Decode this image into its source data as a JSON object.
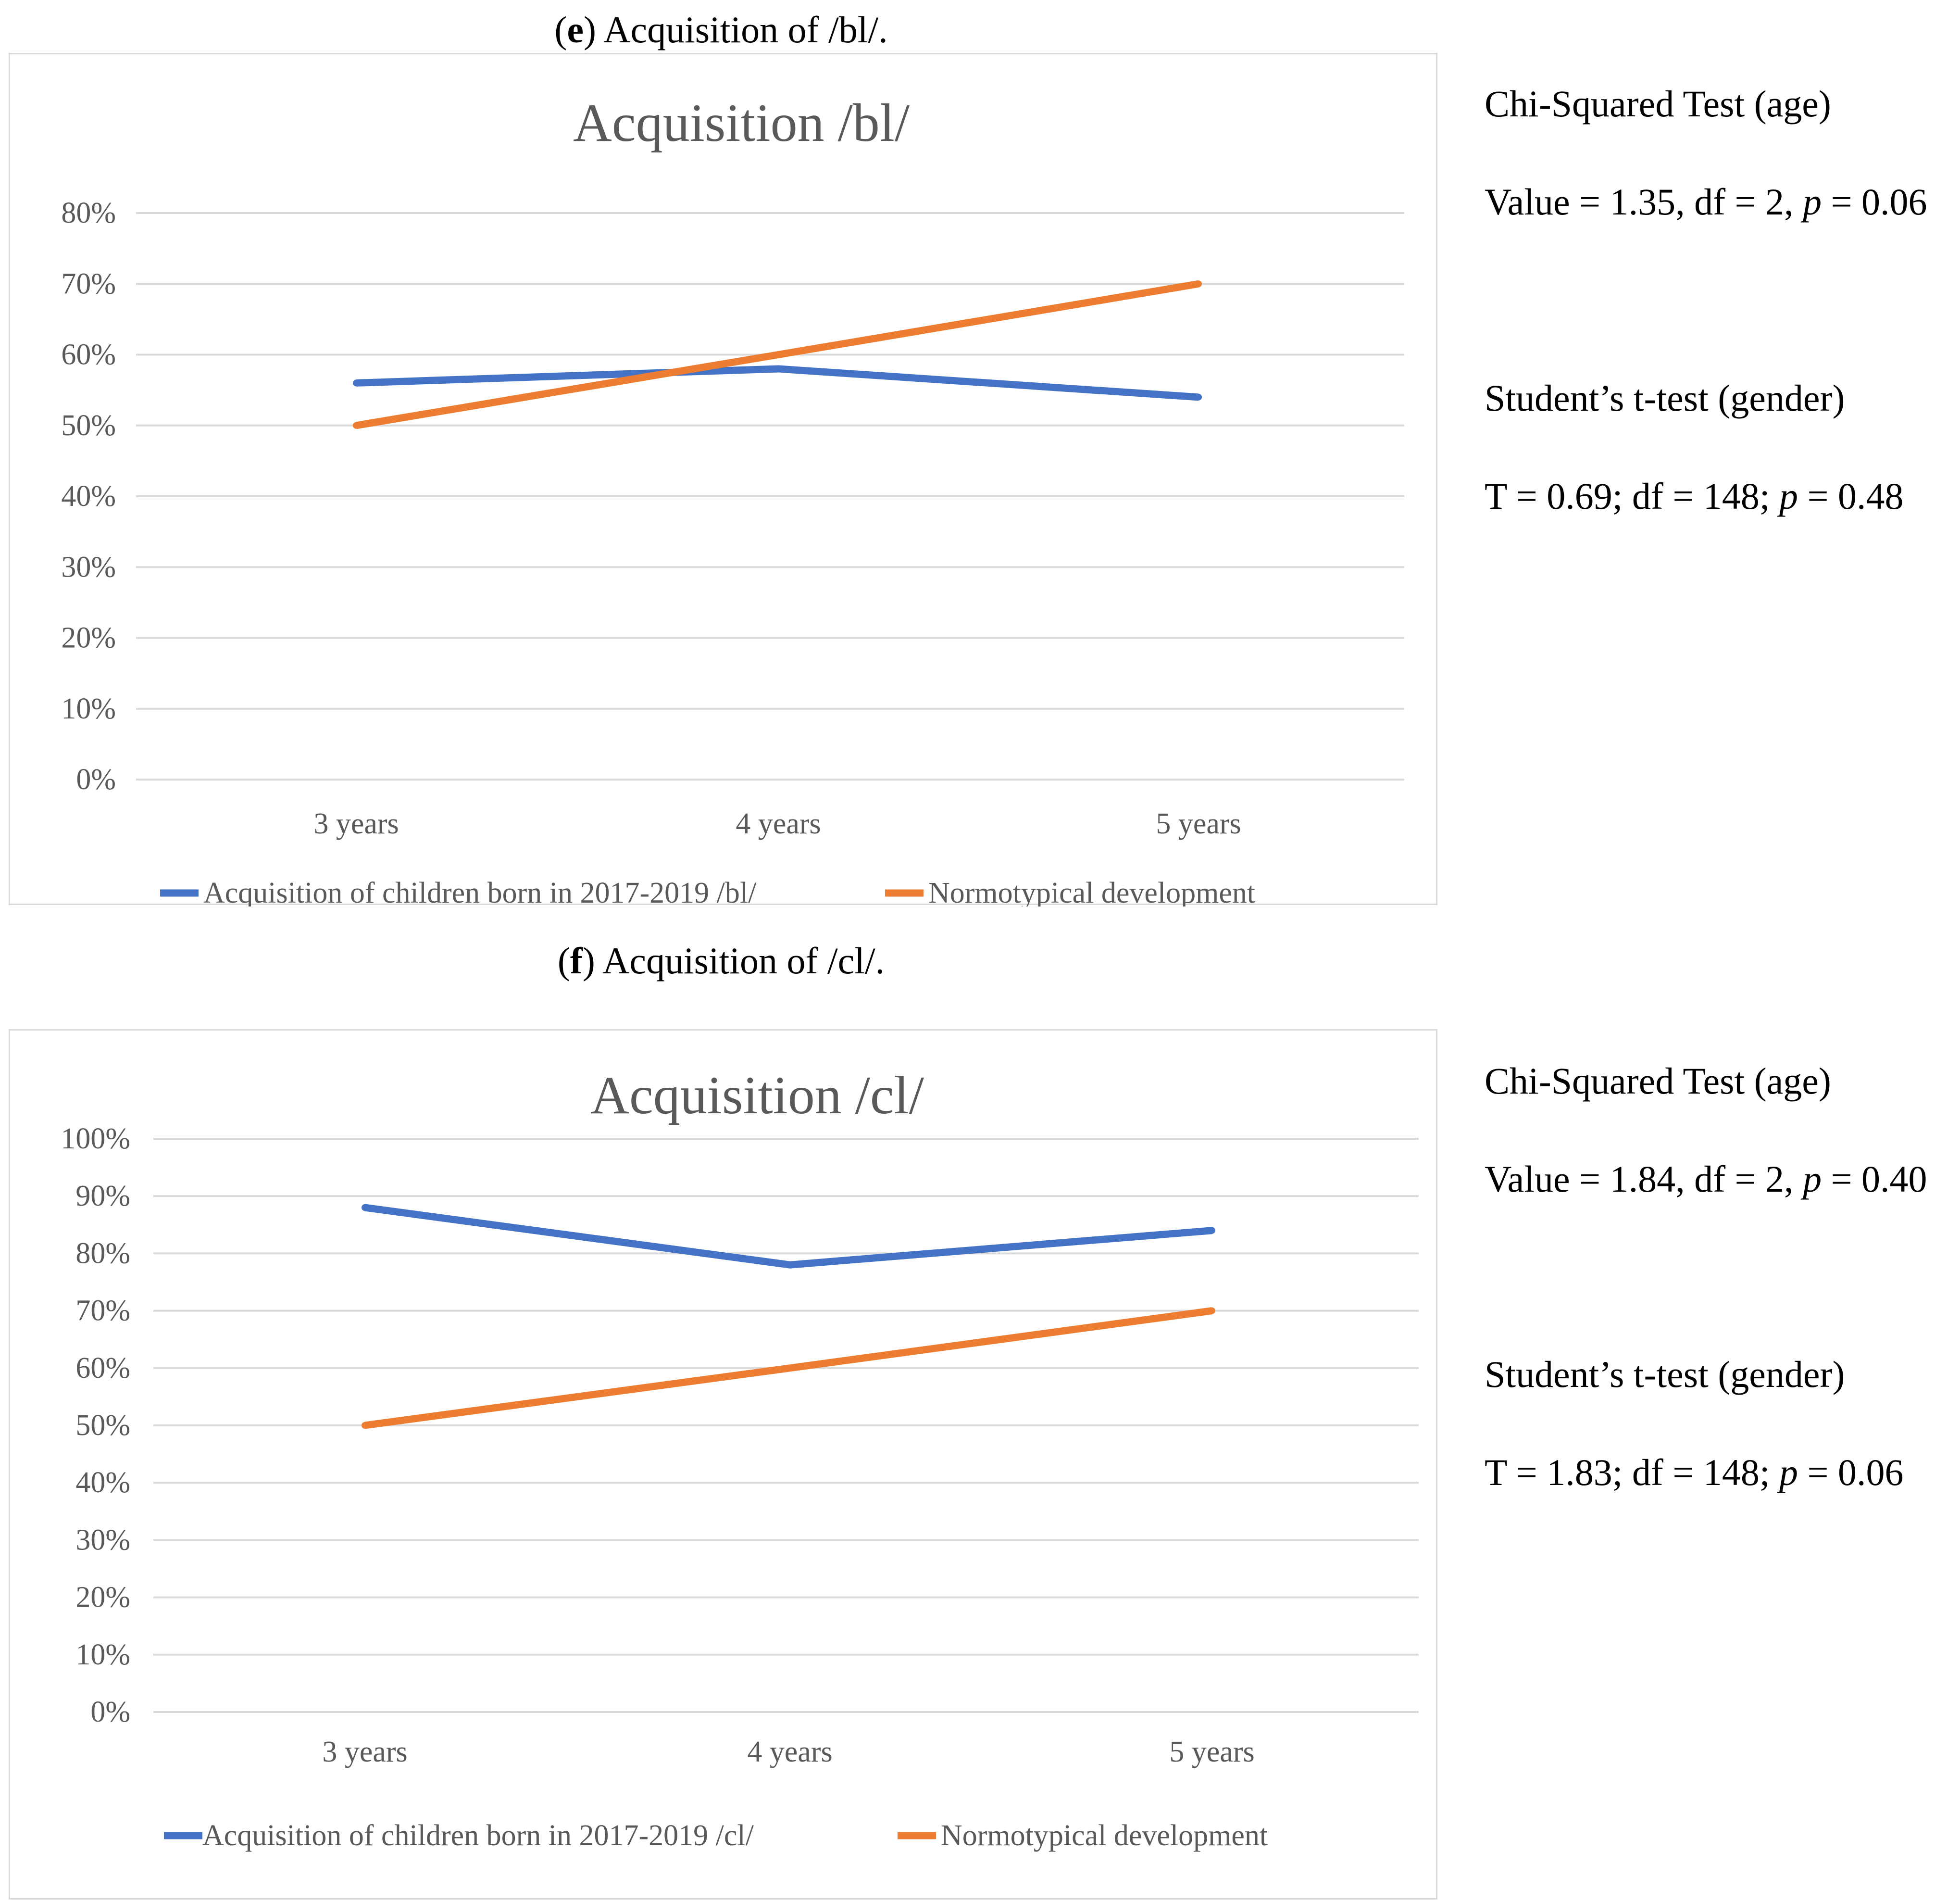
{
  "charts": [
    {
      "caption_letter": "e",
      "caption_rest": ") Acquisition of /bl/.",
      "stats": {
        "chi_title": "Chi-Squared Test (age)",
        "chi_pre": "Value = 1.35, df = 2, ",
        "chi_p": "p",
        "chi_post": " = 0.06",
        "t_title": "Student’s t-test (gender)",
        "t_pre": "T = 0.69; df = 148; ",
        "t_p": "p",
        "t_post": " = 0.48"
      }
    },
    {
      "caption_letter": "f",
      "caption_rest": ") Acquisition of /cl/.",
      "stats": {
        "chi_title": "Chi-Squared Test (age)",
        "chi_pre": "Value = 1.84, df = 2, ",
        "chi_p": "p",
        "chi_post": " = 0.40",
        "t_title": "Student’s t-test (gender)",
        "t_pre": "T = 1.83; df = 148; ",
        "t_p": "p",
        "t_post": " = 0.06"
      }
    }
  ],
  "colors": {
    "series1": "#4472c4",
    "series2": "#ed7d31",
    "grid": "#d9d9d9",
    "text": "#595959"
  },
  "chart_data": [
    {
      "type": "line",
      "title": "Acquisition /bl/",
      "categories": [
        "3 years",
        "4 years",
        "5 years"
      ],
      "yticks": [
        "0%",
        "10%",
        "20%",
        "30%",
        "40%",
        "50%",
        "60%",
        "70%",
        "80%"
      ],
      "ylim": [
        0,
        80
      ],
      "grid": true,
      "legend_position": "bottom",
      "series": [
        {
          "name": "Acquisition of children born in 2017-2019  /bl/",
          "values": [
            56,
            58,
            54
          ]
        },
        {
          "name": "Normotypical development",
          "values": [
            50,
            60,
            70
          ]
        }
      ]
    },
    {
      "type": "line",
      "title": "Acquisition /cl/",
      "categories": [
        "3 years",
        "4 years",
        "5 years"
      ],
      "yticks": [
        "0%",
        "10%",
        "20%",
        "30%",
        "40%",
        "50%",
        "60%",
        "70%",
        "80%",
        "90%",
        "100%"
      ],
      "ylim": [
        0,
        100
      ],
      "grid": true,
      "legend_position": "bottom",
      "series": [
        {
          "name": "Acquisition of children born in 2017-2019 /cl/",
          "values": [
            88,
            78,
            84
          ]
        },
        {
          "name": "Normotypical development",
          "values": [
            50,
            60,
            70
          ]
        }
      ]
    }
  ]
}
